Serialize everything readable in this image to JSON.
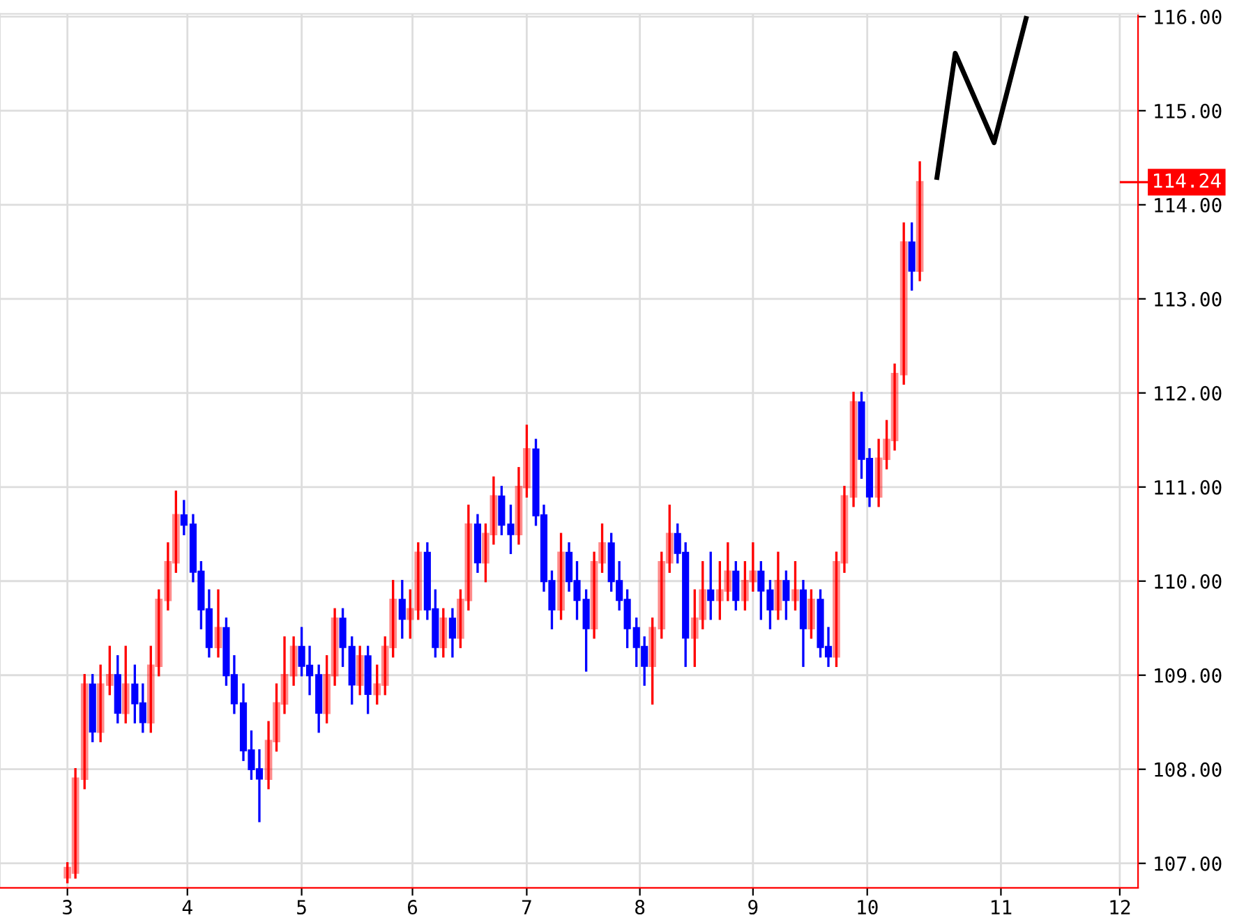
{
  "chart_data": {
    "type": "candlestick",
    "x": [
      3.0,
      3.07,
      3.15,
      3.22,
      3.29,
      3.37,
      3.44,
      3.51,
      3.59,
      3.66,
      3.73,
      3.8,
      3.88,
      3.95,
      4.02,
      4.1,
      4.17,
      4.24,
      4.32,
      4.39,
      4.46,
      4.54,
      4.61,
      4.68,
      4.76,
      4.83,
      4.9,
      4.98,
      5.05,
      5.12,
      5.2,
      5.27,
      5.34,
      5.41,
      5.49,
      5.56,
      5.63,
      5.71,
      5.78,
      5.85,
      5.93,
      6.0,
      6.07,
      6.15,
      6.22,
      6.29,
      6.37,
      6.44,
      6.51,
      6.59,
      6.66,
      6.73,
      6.8,
      6.88,
      6.95,
      7.02,
      7.1,
      7.17,
      7.24,
      7.32,
      7.39,
      7.46,
      7.54,
      7.61,
      7.68,
      7.76,
      7.83,
      7.9,
      7.98,
      8.05,
      8.12,
      8.2,
      8.27,
      8.34,
      8.41,
      8.49,
      8.56,
      8.63,
      8.71,
      8.78,
      8.85,
      8.93,
      9.0,
      9.07,
      9.15,
      9.22,
      9.29,
      9.37,
      9.44,
      9.51,
      9.59,
      9.66,
      9.73,
      9.8,
      9.88,
      9.95,
      10.02,
      10.1,
      10.17,
      10.24,
      10.32,
      10.39,
      10.46
    ],
    "ohlc": [
      [
        106.85,
        107.0,
        106.8,
        106.95
      ],
      [
        106.9,
        108.0,
        106.85,
        107.9
      ],
      [
        107.9,
        109.0,
        107.8,
        108.9
      ],
      [
        108.9,
        109.0,
        108.3,
        108.4
      ],
      [
        108.4,
        109.1,
        108.3,
        108.9
      ],
      [
        108.9,
        109.3,
        108.8,
        109.0
      ],
      [
        109.0,
        109.2,
        108.5,
        108.6
      ],
      [
        108.6,
        109.3,
        108.5,
        108.9
      ],
      [
        108.9,
        109.1,
        108.5,
        108.7
      ],
      [
        108.7,
        108.9,
        108.4,
        108.5
      ],
      [
        108.5,
        109.3,
        108.4,
        109.1
      ],
      [
        109.1,
        109.9,
        109.0,
        109.8
      ],
      [
        109.8,
        110.4,
        109.7,
        110.2
      ],
      [
        110.2,
        110.95,
        110.1,
        110.7
      ],
      [
        110.7,
        110.85,
        110.5,
        110.6
      ],
      [
        110.6,
        110.7,
        110.0,
        110.1
      ],
      [
        110.1,
        110.2,
        109.5,
        109.7
      ],
      [
        109.7,
        109.9,
        109.2,
        109.3
      ],
      [
        109.3,
        109.9,
        109.2,
        109.5
      ],
      [
        109.5,
        109.6,
        108.9,
        109.0
      ],
      [
        109.0,
        109.2,
        108.6,
        108.7
      ],
      [
        108.7,
        108.9,
        108.1,
        108.2
      ],
      [
        108.2,
        108.4,
        107.9,
        108.0
      ],
      [
        108.0,
        108.2,
        107.45,
        107.9
      ],
      [
        107.9,
        108.5,
        107.8,
        108.3
      ],
      [
        108.3,
        108.9,
        108.2,
        108.7
      ],
      [
        108.7,
        109.4,
        108.6,
        109.0
      ],
      [
        109.0,
        109.4,
        108.9,
        109.3
      ],
      [
        109.3,
        109.5,
        109.0,
        109.1
      ],
      [
        109.1,
        109.3,
        108.8,
        109.0
      ],
      [
        109.0,
        109.1,
        108.4,
        108.6
      ],
      [
        108.6,
        109.2,
        108.5,
        109.0
      ],
      [
        109.0,
        109.7,
        108.9,
        109.6
      ],
      [
        109.6,
        109.7,
        109.1,
        109.3
      ],
      [
        109.3,
        109.4,
        108.7,
        108.9
      ],
      [
        108.9,
        109.3,
        108.8,
        109.2
      ],
      [
        109.2,
        109.3,
        108.6,
        108.8
      ],
      [
        108.8,
        109.1,
        108.7,
        108.9
      ],
      [
        108.9,
        109.4,
        108.8,
        109.3
      ],
      [
        109.3,
        110.0,
        109.2,
        109.8
      ],
      [
        109.8,
        110.0,
        109.4,
        109.6
      ],
      [
        109.6,
        109.9,
        109.4,
        109.7
      ],
      [
        109.7,
        110.4,
        109.6,
        110.3
      ],
      [
        110.3,
        110.4,
        109.6,
        109.7
      ],
      [
        109.7,
        109.9,
        109.2,
        109.3
      ],
      [
        109.3,
        109.7,
        109.2,
        109.6
      ],
      [
        109.6,
        109.7,
        109.2,
        109.4
      ],
      [
        109.4,
        109.9,
        109.3,
        109.8
      ],
      [
        109.8,
        110.8,
        109.7,
        110.6
      ],
      [
        110.6,
        110.7,
        110.1,
        110.2
      ],
      [
        110.2,
        110.6,
        110.0,
        110.5
      ],
      [
        110.5,
        111.1,
        110.4,
        110.9
      ],
      [
        110.9,
        111.0,
        110.5,
        110.6
      ],
      [
        110.6,
        110.8,
        110.3,
        110.5
      ],
      [
        110.5,
        111.2,
        110.4,
        111.0
      ],
      [
        111.0,
        111.65,
        110.9,
        111.4
      ],
      [
        111.4,
        111.5,
        110.6,
        110.7
      ],
      [
        110.7,
        110.8,
        109.9,
        110.0
      ],
      [
        110.0,
        110.1,
        109.5,
        109.7
      ],
      [
        109.7,
        110.5,
        109.6,
        110.3
      ],
      [
        110.3,
        110.4,
        109.9,
        110.0
      ],
      [
        110.0,
        110.2,
        109.6,
        109.8
      ],
      [
        109.8,
        109.9,
        109.05,
        109.5
      ],
      [
        109.5,
        110.3,
        109.4,
        110.2
      ],
      [
        110.2,
        110.6,
        110.1,
        110.4
      ],
      [
        110.4,
        110.5,
        109.9,
        110.0
      ],
      [
        110.0,
        110.2,
        109.7,
        109.8
      ],
      [
        109.8,
        109.9,
        109.3,
        109.5
      ],
      [
        109.5,
        109.6,
        109.1,
        109.3
      ],
      [
        109.3,
        109.4,
        108.9,
        109.1
      ],
      [
        109.1,
        109.6,
        108.7,
        109.5
      ],
      [
        109.5,
        110.3,
        109.4,
        110.2
      ],
      [
        110.2,
        110.8,
        110.1,
        110.5
      ],
      [
        110.5,
        110.6,
        110.2,
        110.3
      ],
      [
        110.3,
        110.4,
        109.1,
        109.4
      ],
      [
        109.4,
        109.9,
        109.1,
        109.6
      ],
      [
        109.6,
        110.2,
        109.5,
        109.9
      ],
      [
        109.9,
        110.3,
        109.6,
        109.8
      ],
      [
        109.8,
        110.2,
        109.6,
        109.9
      ],
      [
        109.9,
        110.4,
        109.8,
        110.1
      ],
      [
        110.1,
        110.2,
        109.7,
        109.8
      ],
      [
        109.8,
        110.2,
        109.7,
        110.0
      ],
      [
        110.0,
        110.4,
        109.9,
        110.1
      ],
      [
        110.1,
        110.2,
        109.6,
        109.9
      ],
      [
        109.9,
        110.0,
        109.5,
        109.7
      ],
      [
        109.7,
        110.3,
        109.6,
        110.0
      ],
      [
        110.0,
        110.1,
        109.6,
        109.8
      ],
      [
        109.8,
        110.2,
        109.7,
        109.9
      ],
      [
        109.9,
        110.0,
        109.1,
        109.5
      ],
      [
        109.5,
        109.9,
        109.4,
        109.8
      ],
      [
        109.8,
        109.9,
        109.2,
        109.3
      ],
      [
        109.3,
        109.5,
        109.1,
        109.2
      ],
      [
        109.2,
        110.3,
        109.1,
        110.2
      ],
      [
        110.2,
        111.0,
        110.1,
        110.9
      ],
      [
        110.9,
        112.0,
        110.8,
        111.9
      ],
      [
        111.9,
        112.0,
        111.1,
        111.3
      ],
      [
        111.3,
        111.4,
        110.8,
        110.9
      ],
      [
        110.9,
        111.5,
        110.8,
        111.3
      ],
      [
        111.3,
        111.7,
        111.2,
        111.5
      ],
      [
        111.5,
        112.3,
        111.4,
        112.2
      ],
      [
        112.2,
        113.8,
        112.1,
        113.6
      ],
      [
        113.6,
        113.8,
        113.1,
        113.3
      ],
      [
        113.3,
        114.45,
        113.2,
        114.24
      ]
    ],
    "colors": [
      "#ff0000",
      "#ff0000",
      "#ff0000",
      "#0000ff",
      "#ff0000",
      "#ff0000",
      "#0000ff",
      "#ff0000",
      "#0000ff",
      "#0000ff",
      "#ff0000",
      "#ff0000",
      "#ff0000",
      "#ff0000",
      "#0000ff",
      "#0000ff",
      "#0000ff",
      "#0000ff",
      "#ff0000",
      "#0000ff",
      "#0000ff",
      "#0000ff",
      "#0000ff",
      "#0000ff",
      "#ff0000",
      "#ff0000",
      "#ff0000",
      "#ff0000",
      "#0000ff",
      "#0000ff",
      "#0000ff",
      "#ff0000",
      "#ff0000",
      "#0000ff",
      "#0000ff",
      "#ff0000",
      "#0000ff",
      "#ff0000",
      "#ff0000",
      "#ff0000",
      "#0000ff",
      "#ff0000",
      "#ff0000",
      "#0000ff",
      "#0000ff",
      "#ff0000",
      "#0000ff",
      "#ff0000",
      "#ff0000",
      "#0000ff",
      "#ff0000",
      "#ff0000",
      "#0000ff",
      "#0000ff",
      "#ff0000",
      "#ff0000",
      "#0000ff",
      "#0000ff",
      "#0000ff",
      "#ff0000",
      "#0000ff",
      "#0000ff",
      "#0000ff",
      "#ff0000",
      "#ff0000",
      "#0000ff",
      "#0000ff",
      "#0000ff",
      "#0000ff",
      "#0000ff",
      "#ff0000",
      "#ff0000",
      "#ff0000",
      "#0000ff",
      "#0000ff",
      "#ff0000",
      "#ff0000",
      "#0000ff",
      "#ff0000",
      "#ff0000",
      "#0000ff",
      "#ff0000",
      "#ff0000",
      "#0000ff",
      "#0000ff",
      "#ff0000",
      "#0000ff",
      "#ff0000",
      "#0000ff",
      "#ff0000",
      "#0000ff",
      "#0000ff",
      "#ff0000",
      "#ff0000",
      "#ff0000",
      "#0000ff",
      "#0000ff",
      "#ff0000",
      "#ff0000",
      "#ff0000",
      "#ff0000",
      "#0000ff",
      "#ff0000"
    ],
    "series": [
      {
        "type": "line",
        "color": "#000000",
        "x": [
          10.61,
          10.77,
          11.11,
          11.39
        ],
        "values": [
          114.29,
          115.61,
          114.66,
          115.98
        ]
      }
    ],
    "ref_lines": [
      {
        "axis": "y",
        "value": 114.24,
        "label": "114.24",
        "color": "#ff0000"
      }
    ],
    "xlim": [
      2.41,
      12.37
    ],
    "xticks": [
      {
        "value": 3,
        "label": "3"
      },
      {
        "value": 4.05,
        "label": "4"
      },
      {
        "value": 5.05,
        "label": "5"
      },
      {
        "value": 6.02,
        "label": "6"
      },
      {
        "value": 7.02,
        "label": "7"
      },
      {
        "value": 8.01,
        "label": "8"
      },
      {
        "value": 9.0,
        "label": "9"
      },
      {
        "value": 10.0,
        "label": "10"
      },
      {
        "value": 11.17,
        "label": "11"
      },
      {
        "value": 12.21,
        "label": "12"
      }
    ],
    "ylim": [
      106.74,
      116.03
    ],
    "yticks": [
      {
        "value": 107,
        "label": "107.00"
      },
      {
        "value": 108,
        "label": "108.00"
      },
      {
        "value": 109,
        "label": "109.00"
      },
      {
        "value": 110,
        "label": "110.00"
      },
      {
        "value": 111,
        "label": "111.00"
      },
      {
        "value": 112,
        "label": "112.00"
      },
      {
        "value": 113,
        "label": "113.00"
      },
      {
        "value": 114,
        "label": "114.00"
      },
      {
        "value": 115,
        "label": "115.00"
      },
      {
        "value": 116,
        "label": "116.00"
      }
    ],
    "grid": true,
    "legend": false
  }
}
